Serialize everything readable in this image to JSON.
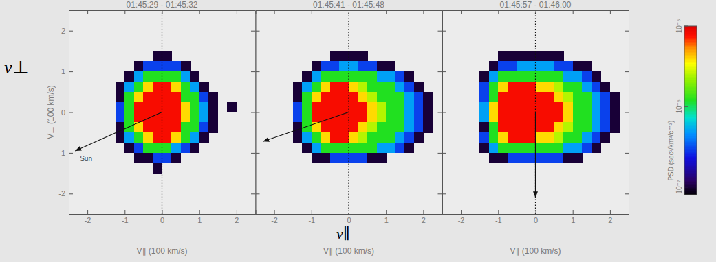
{
  "chart_data": [
    {
      "type": "heatmap",
      "title": "01:45:29 - 01:45:32",
      "x_label": "V∥ (100 km/s)",
      "y_label": "V⊥ (100 km/s)",
      "xlim": [
        -2.5,
        2.5
      ],
      "ylim": [
        -2.5,
        2.5
      ],
      "xticks": [
        -2,
        -1,
        0,
        1,
        2
      ],
      "yticks": [
        -2,
        -1,
        0,
        1,
        2
      ],
      "x_edges": [
        -1.5,
        -1.25,
        -1,
        -0.75,
        -0.5,
        -0.25,
        0,
        0.25,
        0.5,
        0.75,
        1,
        1.25,
        1.5,
        1.75,
        2,
        2.25
      ],
      "y_edges": [
        1.5,
        1.25,
        1,
        0.75,
        0.5,
        0.25,
        0,
        -0.25,
        -0.5,
        -0.75,
        -1,
        -1.25,
        -1.5
      ],
      "cells": [
        [
          null,
          null,
          null,
          null,
          null,
          1e-07,
          1e-07,
          null,
          null,
          null,
          null,
          null,
          null,
          null,
          null
        ],
        [
          null,
          null,
          null,
          1e-07,
          3e-07,
          3e-07,
          3e-07,
          3e-07,
          1e-07,
          null,
          null,
          null,
          null,
          null,
          null
        ],
        [
          null,
          null,
          1e-07,
          5e-07,
          1.2e-06,
          1.2e-06,
          1.2e-06,
          1.2e-06,
          5e-07,
          1e-07,
          null,
          null,
          null,
          null,
          null
        ],
        [
          null,
          1e-07,
          5e-07,
          1.2e-06,
          4e-06,
          8e-06,
          8e-06,
          4e-06,
          1.2e-06,
          5e-07,
          1e-07,
          null,
          null,
          null,
          null
        ],
        [
          null,
          1e-07,
          1.2e-06,
          4e-06,
          8e-06,
          8e-06,
          8e-06,
          8e-06,
          1.2e-06,
          1.2e-06,
          3e-07,
          1e-07,
          null,
          null,
          null
        ],
        [
          null,
          3e-07,
          1.2e-06,
          8e-06,
          8e-06,
          8e-06,
          8e-06,
          8e-06,
          4e-06,
          1.2e-06,
          5e-07,
          1e-07,
          null,
          1e-07,
          null
        ],
        [
          null,
          3e-07,
          1.2e-06,
          8e-06,
          8e-06,
          8e-06,
          8e-06,
          8e-06,
          4e-06,
          1.2e-06,
          5e-07,
          1e-07,
          null,
          null,
          null
        ],
        [
          null,
          1e-07,
          1.2e-06,
          4e-06,
          8e-06,
          8e-06,
          8e-06,
          8e-06,
          1.2e-06,
          1.2e-06,
          3e-07,
          1e-07,
          null,
          null,
          null
        ],
        [
          null,
          1e-07,
          5e-07,
          1.2e-06,
          4e-06,
          8e-06,
          8e-06,
          4e-06,
          1.2e-06,
          5e-07,
          1e-07,
          null,
          null,
          null,
          null
        ],
        [
          null,
          null,
          1e-07,
          3e-07,
          1.2e-06,
          1.2e-06,
          1.2e-06,
          5e-07,
          3e-07,
          1e-07,
          null,
          null,
          null,
          null,
          null
        ],
        [
          null,
          null,
          null,
          1e-07,
          1e-07,
          3e-07,
          3e-07,
          1e-07,
          null,
          null,
          null,
          null,
          null,
          null,
          null
        ],
        [
          null,
          null,
          null,
          null,
          null,
          1e-07,
          null,
          null,
          null,
          null,
          null,
          null,
          null,
          null,
          null
        ]
      ],
      "arrow": {
        "x": -2.33,
        "y": -0.95,
        "label": "Sun"
      },
      "annotations": [
        "v⊥"
      ]
    },
    {
      "type": "heatmap",
      "title": "01:45:41 - 01:45:48",
      "x_label": "V∥ (100 km/s)",
      "xlim": [
        -2.5,
        2.5
      ],
      "ylim": [
        -2.5,
        2.5
      ],
      "xticks": [
        -2,
        -1,
        0,
        1,
        2
      ],
      "yticks": [
        -2,
        -1,
        0,
        1,
        2
      ],
      "tick_labels": "x",
      "x_edges": [
        -1.5,
        -1.25,
        -1,
        -0.75,
        -0.5,
        -0.25,
        0,
        0.25,
        0.5,
        0.75,
        1,
        1.25,
        1.5,
        1.75,
        2,
        2.25
      ],
      "y_edges": [
        1.5,
        1.25,
        1,
        0.75,
        0.5,
        0.25,
        0,
        -0.25,
        -0.5,
        -0.75,
        -1,
        -1.25,
        -1.5
      ],
      "cells": [
        [
          null,
          null,
          null,
          null,
          1e-07,
          1e-07,
          1e-07,
          1e-07,
          null,
          null,
          null,
          null,
          null,
          null,
          null
        ],
        [
          null,
          null,
          1e-07,
          3e-07,
          3e-07,
          5e-07,
          5e-07,
          3e-07,
          3e-07,
          1e-07,
          1e-07,
          null,
          null,
          null,
          null
        ],
        [
          null,
          1e-07,
          5e-07,
          1.2e-06,
          1.2e-06,
          1.2e-06,
          1.2e-06,
          1.2e-06,
          1.2e-06,
          5e-07,
          5e-07,
          3e-07,
          1e-07,
          null,
          null
        ],
        [
          1e-07,
          5e-07,
          1.2e-06,
          4e-06,
          8e-06,
          8e-06,
          4e-06,
          2.5e-06,
          1.2e-06,
          1.2e-06,
          1.2e-06,
          5e-07,
          3e-07,
          1e-07,
          null
        ],
        [
          1e-07,
          1.2e-06,
          4e-06,
          8e-06,
          8e-06,
          8e-06,
          8e-06,
          4e-06,
          2.5e-06,
          1.2e-06,
          1.2e-06,
          1.2e-06,
          5e-07,
          3e-07,
          1e-07
        ],
        [
          3e-07,
          1.2e-06,
          8e-06,
          8e-06,
          8e-06,
          8e-06,
          8e-06,
          8e-06,
          4e-06,
          2.5e-06,
          1.2e-06,
          1.2e-06,
          5e-07,
          3e-07,
          1e-07
        ],
        [
          3e-07,
          1.2e-06,
          8e-06,
          8e-06,
          8e-06,
          8e-06,
          8e-06,
          8e-06,
          4e-06,
          2.5e-06,
          1.2e-06,
          1.2e-06,
          5e-07,
          3e-07,
          1e-07
        ],
        [
          1e-07,
          1.2e-06,
          4e-06,
          8e-06,
          8e-06,
          8e-06,
          8e-06,
          4e-06,
          2.5e-06,
          1.2e-06,
          1.2e-06,
          1.2e-06,
          5e-07,
          3e-07,
          1e-07
        ],
        [
          1e-07,
          5e-07,
          1.2e-06,
          4e-06,
          8e-06,
          8e-06,
          4e-06,
          2.5e-06,
          1.2e-06,
          1.2e-06,
          1.2e-06,
          5e-07,
          3e-07,
          1e-07,
          null
        ],
        [
          null,
          1e-07,
          5e-07,
          1.2e-06,
          1.2e-06,
          1.2e-06,
          1.2e-06,
          1.2e-06,
          1.2e-06,
          5e-07,
          5e-07,
          3e-07,
          1e-07,
          null,
          null
        ],
        [
          null,
          null,
          1e-07,
          1e-07,
          3e-07,
          3e-07,
          3e-07,
          3e-07,
          1e-07,
          1e-07,
          null,
          null,
          null,
          null,
          null
        ],
        [
          null,
          null,
          null,
          null,
          null,
          null,
          null,
          null,
          null,
          null,
          null,
          null,
          null,
          null,
          null
        ]
      ],
      "arrow": {
        "x": -2.3,
        "y": -0.72
      },
      "annotations": [
        "v∥"
      ]
    },
    {
      "type": "heatmap",
      "title": "01:45:57 - 01:46:00",
      "x_label": "V∥ (100 km/s)",
      "xlim": [
        -2.5,
        2.5
      ],
      "ylim": [
        -2.5,
        2.5
      ],
      "xticks": [
        -2,
        -1,
        0,
        1,
        2
      ],
      "yticks": [
        -2,
        -1,
        0,
        1,
        2
      ],
      "tick_labels": "x",
      "x_edges": [
        -1.5,
        -1.25,
        -1,
        -0.75,
        -0.5,
        -0.25,
        0,
        0.25,
        0.5,
        0.75,
        1,
        1.25,
        1.5,
        1.75,
        2,
        2.25
      ],
      "y_edges": [
        1.5,
        1.25,
        1,
        0.75,
        0.5,
        0.25,
        0,
        -0.25,
        -0.5,
        -0.75,
        -1,
        -1.25,
        -1.5
      ],
      "cells": [
        [
          null,
          null,
          1e-07,
          1e-07,
          1e-07,
          1e-07,
          1e-07,
          1e-07,
          1e-07,
          null,
          null,
          null,
          null,
          null,
          null
        ],
        [
          null,
          1e-07,
          3e-07,
          3e-07,
          5e-07,
          5e-07,
          5e-07,
          5e-07,
          3e-07,
          3e-07,
          1e-07,
          1e-07,
          null,
          null,
          null
        ],
        [
          1e-07,
          5e-07,
          1.2e-06,
          1.2e-06,
          1.2e-06,
          1.2e-06,
          1.2e-06,
          1.2e-06,
          1.2e-06,
          5e-07,
          5e-07,
          3e-07,
          1e-07,
          null,
          null
        ],
        [
          3e-07,
          1.2e-06,
          4e-06,
          8e-06,
          8e-06,
          8e-06,
          4e-06,
          4e-06,
          2.5e-06,
          1.2e-06,
          1.2e-06,
          5e-07,
          3e-07,
          1e-07,
          null
        ],
        [
          3e-07,
          1.2e-06,
          8e-06,
          8e-06,
          8e-06,
          8e-06,
          8e-06,
          8e-06,
          4e-06,
          2.5e-06,
          1.2e-06,
          1.2e-06,
          5e-07,
          3e-07,
          1e-07
        ],
        [
          5e-07,
          4e-06,
          8e-06,
          8e-06,
          8e-06,
          8e-06,
          8e-06,
          8e-06,
          8e-06,
          4e-06,
          1.2e-06,
          1.2e-06,
          5e-07,
          3e-07,
          1e-07
        ],
        [
          5e-07,
          4e-06,
          8e-06,
          8e-06,
          8e-06,
          8e-06,
          8e-06,
          8e-06,
          8e-06,
          4e-06,
          1.2e-06,
          1.2e-06,
          5e-07,
          3e-07,
          1e-07
        ],
        [
          1e-07,
          1.2e-06,
          8e-06,
          8e-06,
          8e-06,
          8e-06,
          8e-06,
          8e-06,
          4e-06,
          2.5e-06,
          1.2e-06,
          1.2e-06,
          5e-07,
          3e-07,
          1e-07
        ],
        [
          3e-07,
          1.2e-06,
          4e-06,
          8e-06,
          8e-06,
          8e-06,
          4e-06,
          4e-06,
          2.5e-06,
          1.2e-06,
          1.2e-06,
          5e-07,
          3e-07,
          1e-07,
          null
        ],
        [
          1e-07,
          5e-07,
          1.2e-06,
          1.2e-06,
          1.2e-06,
          1.2e-06,
          1.2e-06,
          1.2e-06,
          1.2e-06,
          5e-07,
          5e-07,
          3e-07,
          1e-07,
          null,
          null
        ],
        [
          null,
          1e-07,
          1e-07,
          3e-07,
          3e-07,
          3e-07,
          3e-07,
          3e-07,
          3e-07,
          1e-07,
          1e-07,
          null,
          null,
          null,
          null
        ],
        [
          null,
          null,
          null,
          null,
          null,
          null,
          null,
          null,
          null,
          null,
          null,
          null,
          null,
          null,
          null
        ]
      ],
      "arrow": {
        "x": 0,
        "y": -2.1
      },
      "colorbar": {
        "label": "PSD (sec³/km³/cm³)",
        "log": true,
        "range": [
          8e-08,
          1e-05
        ],
        "ticks": [
          {
            "value": 1e-05,
            "label": "10⁻⁵"
          },
          {
            "value": 1e-06,
            "label": "10⁻⁶"
          },
          {
            "value": 1e-07,
            "label": "10⁻⁷"
          }
        ]
      }
    }
  ]
}
